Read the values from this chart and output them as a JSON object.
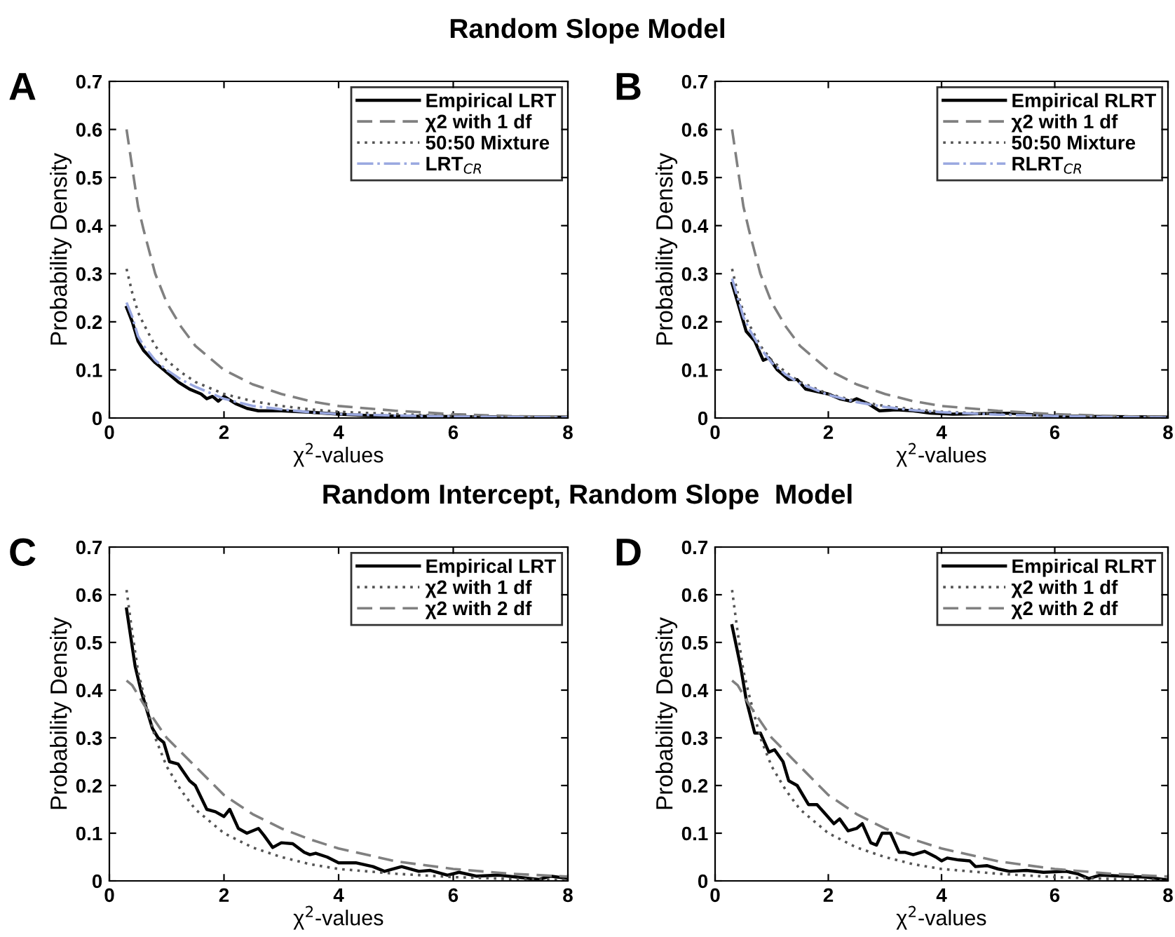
{
  "chart_data": [
    {
      "type": "line",
      "title": "A",
      "annotations": [
        "Random Slope Model"
      ],
      "xlabel": "χ$^{2}$-values",
      "ylabel": "Probability Density",
      "xlim": [
        0,
        8
      ],
      "xticks": [
        0,
        2,
        4,
        6,
        8
      ],
      "ylim": [
        0,
        0.7
      ],
      "yticks": [
        0,
        0.1,
        0.2,
        0.3,
        0.4,
        0.5,
        0.6,
        0.7
      ],
      "legend": "top right",
      "x": [
        0.3,
        0.4,
        0.5,
        0.6,
        0.8,
        1,
        1.25,
        1.5,
        2,
        2.5,
        3,
        3.5,
        4,
        5,
        6,
        7,
        8
      ],
      "series": [
        {
          "name": "Empirical LRT",
          "color": "#000000",
          "line_style": "solid",
          "x": [
            0.3,
            0.4,
            0.5,
            0.6,
            0.8,
            1.0,
            1.2,
            1.4,
            1.6,
            1.7,
            1.8,
            1.9,
            2.0,
            2.2,
            2.4,
            2.6,
            3,
            3.5,
            4,
            4.5,
            5,
            6,
            7,
            8
          ],
          "values": [
            0.23,
            0.2,
            0.16,
            0.14,
            0.115,
            0.095,
            0.075,
            0.06,
            0.05,
            0.04,
            0.045,
            0.035,
            0.045,
            0.03,
            0.02,
            0.015,
            0.015,
            0.012,
            0.008,
            0.005,
            0.004,
            0.003,
            0.002,
            0.002
          ]
        },
        {
          "name": "χ2 with 1 df",
          "color": "#808080",
          "line_style": "dashed",
          "values": [
            0.6,
            0.52,
            0.44,
            0.39,
            0.3,
            0.24,
            0.19,
            0.15,
            0.1,
            0.07,
            0.05,
            0.035,
            0.025,
            0.015,
            0.008,
            0.004,
            0.002
          ]
        },
        {
          "name": "50:50 Mixture",
          "color": "#555555",
          "line_style": "dotted",
          "values": [
            0.31,
            0.26,
            0.22,
            0.195,
            0.15,
            0.12,
            0.095,
            0.075,
            0.05,
            0.035,
            0.025,
            0.018,
            0.013,
            0.008,
            0.004,
            0.002,
            0.001
          ]
        },
        {
          "name": "LRT$_{CR}$",
          "color": "#9aa8e0",
          "line_style": "dashdot",
          "values": [
            0.24,
            0.21,
            0.17,
            0.15,
            0.12,
            0.1,
            0.08,
            0.065,
            0.04,
            0.025,
            0.018,
            0.012,
            0.008,
            0.005,
            0.003,
            0.002,
            0.001
          ]
        }
      ]
    },
    {
      "type": "line",
      "title": "B",
      "xlabel": "χ$^{2}$-values",
      "ylabel": "Probability Density",
      "xlim": [
        0,
        8
      ],
      "xticks": [
        0,
        2,
        4,
        6,
        8
      ],
      "ylim": [
        0,
        0.7
      ],
      "yticks": [
        0,
        0.1,
        0.2,
        0.3,
        0.4,
        0.5,
        0.6,
        0.7
      ],
      "legend": "top right",
      "x": [
        0.3,
        0.4,
        0.5,
        0.6,
        0.8,
        1,
        1.25,
        1.5,
        2,
        2.5,
        3,
        3.5,
        4,
        5,
        6,
        7,
        8
      ],
      "series": [
        {
          "name": "Empirical RLRT",
          "color": "#000000",
          "line_style": "solid",
          "x": [
            0.3,
            0.45,
            0.55,
            0.7,
            0.85,
            0.95,
            1.1,
            1.3,
            1.45,
            1.6,
            1.8,
            2.0,
            2.2,
            2.4,
            2.5,
            2.7,
            2.9,
            3.2,
            3.5,
            3.8,
            4.2,
            5.2,
            6,
            7,
            8
          ],
          "values": [
            0.28,
            0.22,
            0.18,
            0.16,
            0.12,
            0.125,
            0.1,
            0.08,
            0.08,
            0.06,
            0.055,
            0.05,
            0.04,
            0.035,
            0.04,
            0.03,
            0.015,
            0.017,
            0.015,
            0.01,
            0.008,
            0.01,
            0.004,
            0.003,
            0.002
          ]
        },
        {
          "name": "χ2 with 1 df",
          "color": "#808080",
          "line_style": "dashed",
          "values": [
            0.6,
            0.52,
            0.44,
            0.39,
            0.3,
            0.24,
            0.19,
            0.15,
            0.1,
            0.07,
            0.05,
            0.035,
            0.025,
            0.015,
            0.008,
            0.004,
            0.002
          ]
        },
        {
          "name": "50:50 Mixture",
          "color": "#555555",
          "line_style": "dotted",
          "values": [
            0.31,
            0.26,
            0.22,
            0.195,
            0.15,
            0.12,
            0.095,
            0.075,
            0.05,
            0.035,
            0.025,
            0.018,
            0.013,
            0.008,
            0.004,
            0.002,
            0.001
          ]
        },
        {
          "name": "RLRT$_{CR}$",
          "color": "#9aa8e0",
          "line_style": "dashdot",
          "values": [
            0.29,
            0.25,
            0.21,
            0.185,
            0.145,
            0.115,
            0.09,
            0.072,
            0.048,
            0.033,
            0.023,
            0.016,
            0.012,
            0.007,
            0.004,
            0.002,
            0.001
          ]
        }
      ]
    },
    {
      "type": "line",
      "title": "C",
      "annotations": [
        "Random Intercept, Random Slope  Model"
      ],
      "xlabel": "χ$^{2}$-values",
      "ylabel": "Probability Density",
      "xlim": [
        0,
        8
      ],
      "xticks": [
        0,
        2,
        4,
        6,
        8
      ],
      "ylim": [
        0,
        0.7
      ],
      "yticks": [
        0,
        0.1,
        0.2,
        0.3,
        0.4,
        0.5,
        0.6,
        0.7
      ],
      "legend": "top right",
      "x": [
        0.3,
        0.4,
        0.5,
        0.6,
        0.8,
        1,
        1.25,
        1.5,
        2,
        2.5,
        3,
        3.5,
        4,
        5,
        6,
        7,
        8
      ],
      "series": [
        {
          "name": "Empirical LRT",
          "color": "#000000",
          "line_style": "solid",
          "x": [
            0.3,
            0.45,
            0.55,
            0.75,
            0.85,
            0.95,
            1.05,
            1.2,
            1.4,
            1.5,
            1.7,
            1.85,
            2.0,
            2.1,
            2.25,
            2.4,
            2.6,
            2.7,
            2.85,
            3.0,
            3.2,
            3.4,
            3.5,
            3.6,
            3.8,
            4.0,
            4.3,
            4.6,
            4.8,
            5.1,
            5.4,
            5.6,
            5.9,
            6.1,
            6.4,
            6.8,
            7.1,
            7.5,
            7.7,
            8
          ],
          "values": [
            0.57,
            0.45,
            0.4,
            0.32,
            0.3,
            0.29,
            0.25,
            0.245,
            0.21,
            0.2,
            0.15,
            0.145,
            0.135,
            0.15,
            0.11,
            0.1,
            0.11,
            0.095,
            0.07,
            0.08,
            0.078,
            0.06,
            0.055,
            0.058,
            0.05,
            0.038,
            0.038,
            0.03,
            0.02,
            0.03,
            0.02,
            0.022,
            0.012,
            0.018,
            0.01,
            0.012,
            0.008,
            0.003,
            0.01,
            0.005
          ]
        },
        {
          "name": "χ2 with 1 df",
          "color": "#555555",
          "line_style": "dotted",
          "values": [
            0.61,
            0.52,
            0.44,
            0.39,
            0.3,
            0.24,
            0.19,
            0.15,
            0.1,
            0.07,
            0.05,
            0.035,
            0.025,
            0.015,
            0.008,
            0.004,
            0.002
          ]
        },
        {
          "name": "χ2 with 2 df",
          "color": "#808080",
          "line_style": "dashed",
          "values": [
            0.42,
            0.41,
            0.39,
            0.37,
            0.335,
            0.3,
            0.27,
            0.24,
            0.18,
            0.14,
            0.11,
            0.087,
            0.068,
            0.041,
            0.025,
            0.015,
            0.009
          ]
        }
      ]
    },
    {
      "type": "line",
      "title": "D",
      "xlabel": "χ$^{2}$-values",
      "ylabel": "Probability Density",
      "xlim": [
        0,
        8
      ],
      "xticks": [
        0,
        2,
        4,
        6,
        8
      ],
      "ylim": [
        0,
        0.7
      ],
      "yticks": [
        0,
        0.1,
        0.2,
        0.3,
        0.4,
        0.5,
        0.6,
        0.7
      ],
      "legend": "top right",
      "x": [
        0.3,
        0.4,
        0.5,
        0.6,
        0.8,
        1,
        1.25,
        1.5,
        2,
        2.5,
        3,
        3.5,
        4,
        5,
        6,
        7,
        8
      ],
      "series": [
        {
          "name": "Empirical RLRT",
          "color": "#000000",
          "line_style": "solid",
          "x": [
            0.3,
            0.45,
            0.55,
            0.7,
            0.8,
            0.95,
            1.05,
            1.2,
            1.3,
            1.45,
            1.65,
            1.8,
            1.95,
            2.1,
            2.2,
            2.35,
            2.5,
            2.6,
            2.75,
            2.85,
            2.95,
            3.1,
            3.25,
            3.35,
            3.5,
            3.7,
            3.9,
            4.0,
            4.1,
            4.3,
            4.5,
            4.6,
            4.8,
            5.0,
            5.2,
            5.5,
            5.8,
            6.2,
            6.4,
            6.6,
            6.8,
            7.2,
            7.6,
            8
          ],
          "values": [
            0.535,
            0.45,
            0.38,
            0.31,
            0.31,
            0.27,
            0.275,
            0.25,
            0.21,
            0.2,
            0.16,
            0.16,
            0.14,
            0.12,
            0.13,
            0.105,
            0.11,
            0.12,
            0.08,
            0.075,
            0.1,
            0.1,
            0.06,
            0.06,
            0.055,
            0.062,
            0.05,
            0.042,
            0.048,
            0.044,
            0.042,
            0.03,
            0.032,
            0.025,
            0.02,
            0.022,
            0.018,
            0.02,
            0.015,
            0.005,
            0.012,
            0.01,
            0.008,
            0.002
          ]
        },
        {
          "name": "χ2 with 1 df",
          "color": "#555555",
          "line_style": "dotted",
          "values": [
            0.61,
            0.52,
            0.44,
            0.39,
            0.3,
            0.24,
            0.19,
            0.15,
            0.1,
            0.07,
            0.05,
            0.035,
            0.025,
            0.015,
            0.008,
            0.004,
            0.002
          ]
        },
        {
          "name": "χ2 with 2 df",
          "color": "#808080",
          "line_style": "dashed",
          "values": [
            0.42,
            0.41,
            0.39,
            0.37,
            0.335,
            0.3,
            0.27,
            0.24,
            0.18,
            0.14,
            0.11,
            0.087,
            0.068,
            0.041,
            0.025,
            0.015,
            0.009
          ]
        }
      ]
    }
  ]
}
